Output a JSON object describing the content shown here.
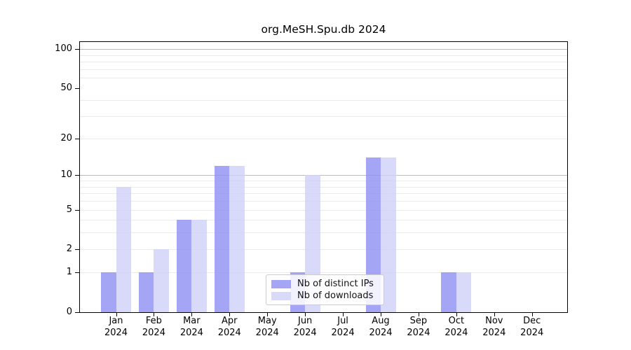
{
  "chart_data": {
    "type": "bar",
    "title": "org.MeSH.Spu.db 2024",
    "categories": [
      "Jan",
      "Feb",
      "Mar",
      "Apr",
      "May",
      "Jun",
      "Jul",
      "Aug",
      "Sep",
      "Oct",
      "Nov",
      "Dec"
    ],
    "year_label": "2024",
    "series": [
      {
        "name": "Nb of distinct IPs",
        "color": "#8f8ff4",
        "values": [
          1,
          1,
          4,
          12,
          0,
          1,
          0,
          14,
          0,
          1,
          0,
          0
        ]
      },
      {
        "name": "Nb of downloads",
        "color": "#d0d0f9",
        "values": [
          8,
          2,
          4,
          12,
          0,
          10,
          0,
          14,
          0,
          1,
          0,
          0
        ]
      }
    ],
    "y_scale": "log1p",
    "y_ticks": [
      0,
      1,
      2,
      5,
      10,
      20,
      50,
      100
    ],
    "ylim": [
      0,
      115
    ],
    "grid": "horizontal",
    "grid_minor_values": [
      1,
      2,
      3,
      4,
      5,
      6,
      7,
      8,
      9,
      20,
      30,
      40,
      60,
      70,
      80,
      90
    ],
    "grid_major_values": [
      10,
      100
    ],
    "legend_position": "lower-center",
    "axis_color": "#000000",
    "background_color": "#ffffff"
  }
}
